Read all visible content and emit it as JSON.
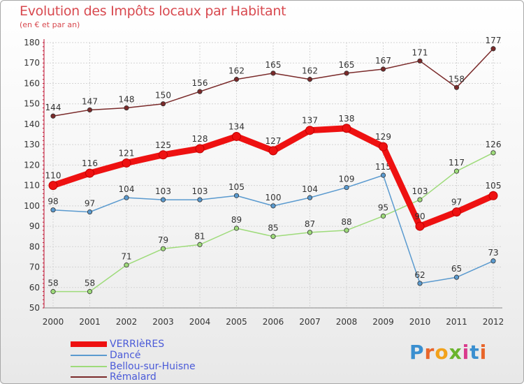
{
  "title": "Evolution des Impôts locaux par Habitant",
  "subtitle": "(en € et par an)",
  "logo": {
    "text": [
      "P",
      "r",
      "o",
      "x",
      "i",
      "t",
      "i"
    ],
    "colors": [
      "#3a8fd0",
      "#e8652a",
      "#f2a21b",
      "#6ab42d",
      "#d93a8c",
      "#3a8fd0",
      "#e8652a"
    ]
  },
  "chart_data": {
    "type": "line",
    "x": [
      "2000",
      "2001",
      "2002",
      "2003",
      "2004",
      "2005",
      "2006",
      "2007",
      "2008",
      "2009",
      "2010",
      "2011",
      "2012"
    ],
    "ylim": [
      50,
      180
    ],
    "yticks": [
      "50",
      "60",
      "70",
      "80",
      "90",
      "100",
      "110",
      "120",
      "130",
      "140",
      "150",
      "160",
      "170",
      "180"
    ],
    "grid": true,
    "legend_position": "bottom-left",
    "series": [
      {
        "name": "Rémalard",
        "color": "#7a2a2a",
        "values": [
          144,
          147,
          148,
          150,
          156,
          162,
          165,
          162,
          165,
          167,
          171,
          158,
          177
        ]
      },
      {
        "name": "Bellou-sur-Huisne",
        "color": "#9edb7a",
        "values": [
          58,
          58,
          71,
          79,
          81,
          89,
          85,
          87,
          88,
          95,
          103,
          117,
          126
        ]
      },
      {
        "name": "Dancé",
        "color": "#5a9acf",
        "values": [
          98,
          97,
          104,
          103,
          103,
          105,
          100,
          104,
          109,
          115,
          62,
          65,
          73
        ]
      },
      {
        "name": "VERRIèRES",
        "color": "#ee1111",
        "values": [
          110,
          116,
          121,
          125,
          128,
          134,
          127,
          137,
          138,
          129,
          90,
          97,
          105
        ]
      }
    ]
  }
}
